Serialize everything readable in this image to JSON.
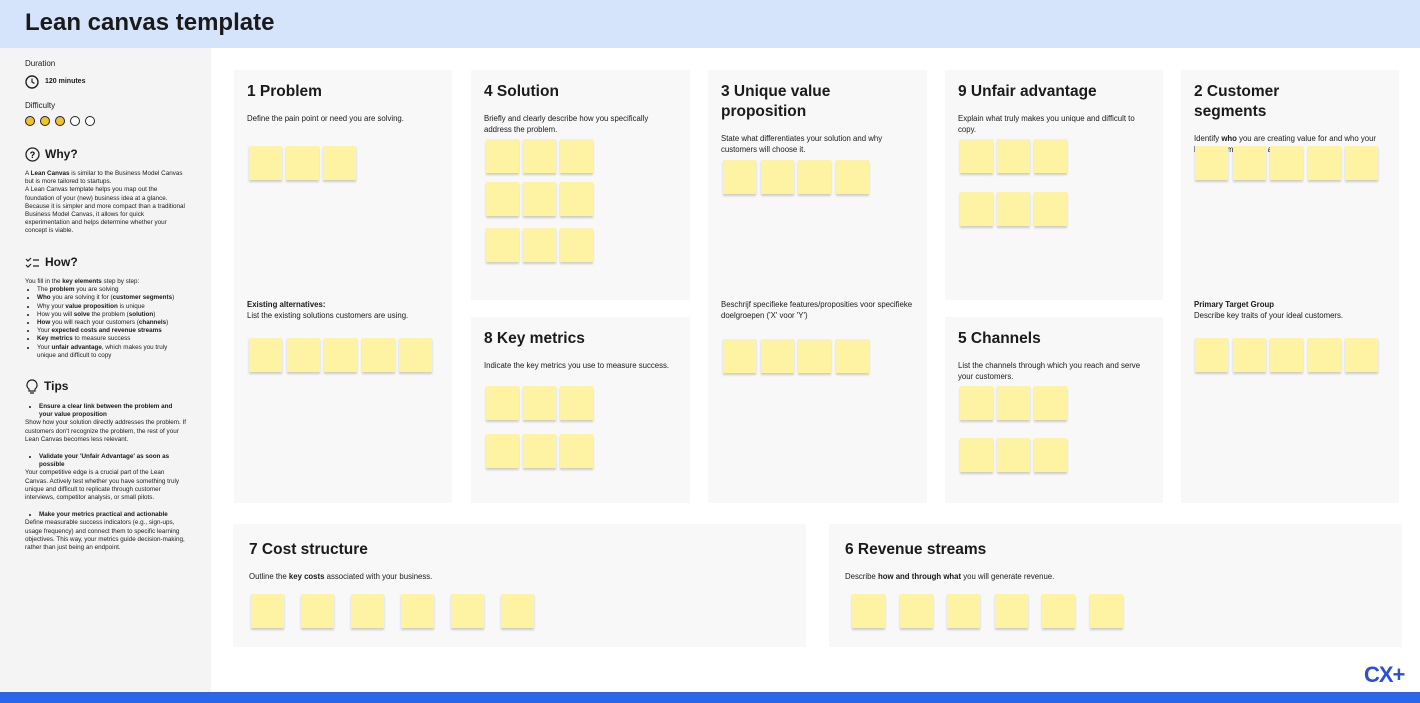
{
  "header": {
    "title": "Lean canvas template"
  },
  "sidebar": {
    "duration_label": "Duration",
    "duration": "120 minutes",
    "difficulty_label": "Difficulty",
    "why": {
      "title": "Why?",
      "paragraphs": [
        [
          "A ",
          {
            "bold": "Lean Canvas"
          },
          " is similar to the Business Model Canvas but is more tailored to startups."
        ],
        [
          "A Lean Canvas template helps you map out the foundation of your (new) business idea at a glance. Because it is simpler and more compact than a traditional Business Model Canvas, it allows for quick experimentation and helps determine whether your concept is viable."
        ]
      ]
    },
    "how": {
      "title": "How?",
      "intro": [
        "You fill in the ",
        {
          "bold": "key elements"
        },
        " step by step:"
      ],
      "items": [
        [
          "The ",
          {
            "bold": "problem"
          },
          " you are solving"
        ],
        [
          {
            "bold": "Who"
          },
          " you are solving it for (",
          {
            "bold": "customer segments"
          },
          ")"
        ],
        [
          "Why your ",
          {
            "bold": "value proposition"
          },
          " is unique"
        ],
        [
          "How you will ",
          {
            "bold": "solve"
          },
          " the problem (",
          {
            "bold": "solution"
          },
          ")"
        ],
        [
          {
            "bold": "How"
          },
          " you will reach your customers (",
          {
            "bold": "channels"
          },
          ")"
        ],
        [
          "Your ",
          {
            "bold": "expected costs and revenue streams"
          }
        ],
        [
          {
            "bold": "Key metrics"
          },
          " to measure success"
        ],
        [
          "Your ",
          {
            "bold": "unfair advantage"
          },
          ", which makes you truly unique and difficult to copy"
        ]
      ]
    },
    "tips": {
      "title": "Tips",
      "items": [
        {
          "heading": "Ensure a clear link between the problem and your value proposition",
          "text": [
            "Show how your solution directly addresses the problem. If customers don't recognize the problem, the rest of your Lean Canvas becomes less relevant."
          ]
        },
        {
          "heading": "Validate your 'Unfair Advantage' as soon as possible",
          "text": [
            "Your competitive edge is a crucial part of the Lean Canvas. Actively test whether you have something truly unique and difficult to replicate through customer interviews, competitor analysis, or small pilots."
          ]
        },
        {
          "heading": "Make your metrics practical and actionable",
          "text": [
            "Define measurable success indicators (e.g., sign-ups, usage frequency) and connect them to specific learning objectives. This way, your metrics guide decision-making, rather than just being an endpoint."
          ]
        }
      ]
    }
  },
  "canvas": {
    "blocks": [
      {
        "title": "1 Problem",
        "description": [
          "Define the pain point or need you are solving."
        ],
        "section": {
          "heading": "Existing alternatives:",
          "text": [
            "List the existing solutions customers are using."
          ]
        }
      },
      {
        "title": "4 Solution",
        "description": [
          "Briefly and clearly describe how you specifically address the problem."
        ]
      },
      {
        "title": "3 Unique value proposition",
        "description": [
          "State what differentiates your solution and why customers will choose it."
        ],
        "section": {
          "text": [
            "Beschrijf specifieke features/proposities voor specifieke doelgroepen ('X' voor 'Y')"
          ]
        }
      },
      {
        "title": "9 Unfair advantage",
        "description": [
          "Explain what truly makes you unique and difficult to copy."
        ]
      },
      {
        "title": "2 Customer segments",
        "description": [
          "Identify ",
          {
            "bold": "who"
          },
          " you are creating value for and who your key customers/users are."
        ],
        "section": {
          "heading": "Primary Target Group",
          "text": [
            "Describe key traits of your ideal customers."
          ]
        }
      },
      {
        "title": "8 Key metrics",
        "description": [
          "Indicate the key metrics you use to measure success."
        ]
      },
      {
        "title": "5 Channels",
        "description": [
          "List the channels through which you reach and serve your customers."
        ]
      },
      {
        "title": "7 Cost structure",
        "description": [
          "Outline the ",
          {
            "bold": "key costs"
          },
          " associated with your business."
        ]
      },
      {
        "title": "6 Revenue streams",
        "description": [
          "Describe ",
          {
            "bold": "how and through what"
          },
          " you will generate revenue."
        ]
      }
    ]
  },
  "logo": "CX+"
}
